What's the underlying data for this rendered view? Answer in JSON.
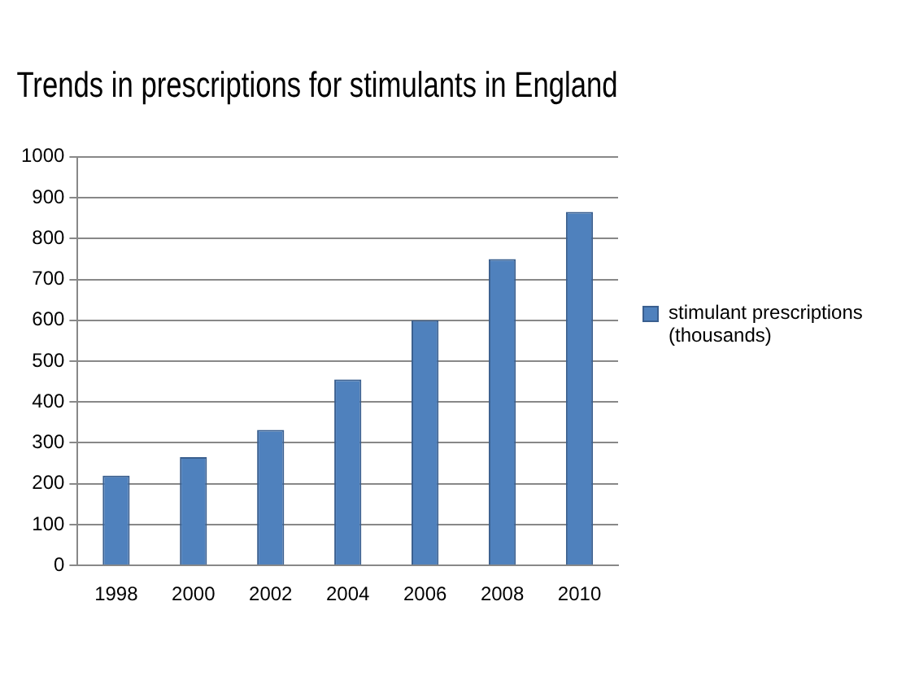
{
  "chart_data": {
    "type": "bar",
    "title": "Trends in prescriptions for stimulants in England",
    "categories": [
      "1998",
      "2000",
      "2002",
      "2004",
      "2006",
      "2008",
      "2010"
    ],
    "series": [
      {
        "name": "stimulant prescriptions (thousands)",
        "color": "#4f81bd",
        "values": [
          220,
          265,
          332,
          455,
          600,
          750,
          865
        ]
      }
    ],
    "ylim": [
      0,
      1000
    ],
    "yticks": [
      0,
      100,
      200,
      300,
      400,
      500,
      600,
      700,
      800,
      900,
      1000
    ],
    "grid": "y",
    "legend": "right"
  }
}
